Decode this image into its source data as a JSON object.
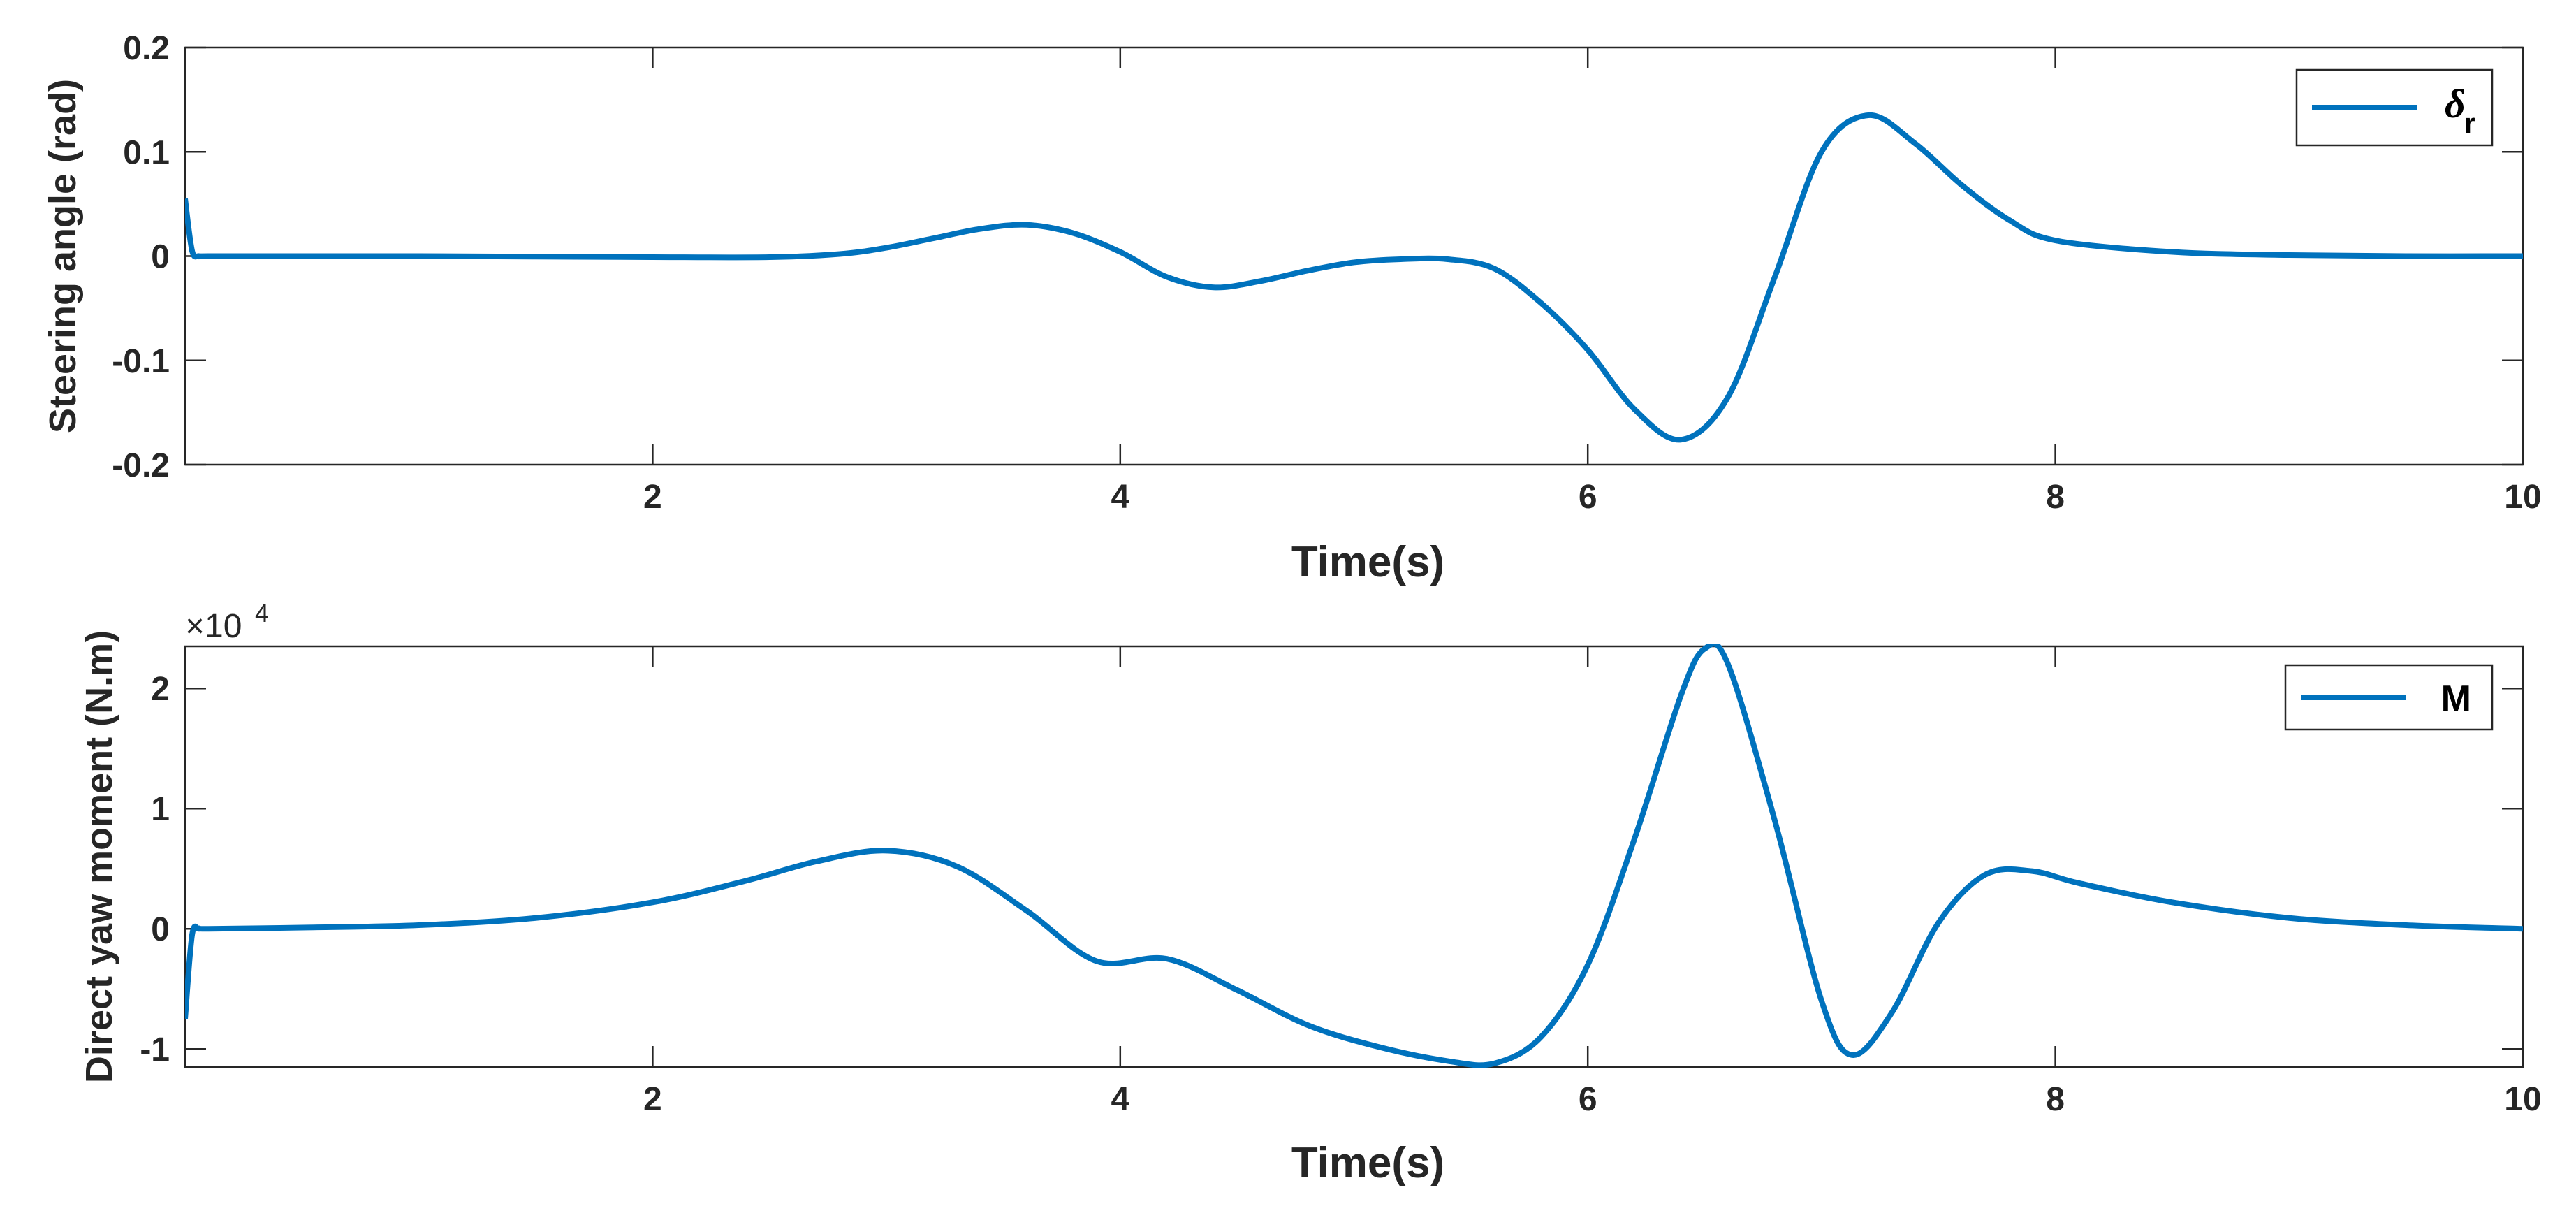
{
  "chart_data": [
    {
      "type": "line",
      "xlabel": "Time(s)",
      "ylabel": "Steering angle (rad)",
      "xlim": [
        0,
        10
      ],
      "ylim": [
        -0.2,
        0.2
      ],
      "xticks": [
        2,
        4,
        6,
        8,
        10
      ],
      "yticks": [
        -0.2,
        -0.1,
        0,
        0.1,
        0.2
      ],
      "xtick_labels": [
        "2",
        "4",
        "6",
        "8",
        "10"
      ],
      "ytick_labels": [
        "-0.2",
        "-0.1",
        "0",
        "0.1",
        "0.2"
      ],
      "grid": false,
      "legend_position": "top-right",
      "color": "#0072BD",
      "series": [
        {
          "name": "δ",
          "name_sub": "r",
          "x": [
            0,
            0.03,
            0.06,
            0.1,
            0.5,
            1,
            1.5,
            2,
            2.5,
            2.8,
            3,
            3.2,
            3.4,
            3.6,
            3.8,
            4.0,
            4.2,
            4.4,
            4.6,
            4.8,
            5.0,
            5.2,
            5.4,
            5.6,
            5.8,
            6.0,
            6.2,
            6.4,
            6.6,
            6.8,
            7.0,
            7.2,
            7.4,
            7.6,
            7.8,
            8.0,
            8.5,
            9,
            9.5,
            10
          ],
          "values": [
            0.055,
            0.005,
            0.0,
            0.0,
            0.0,
            0.0,
            -0.0005,
            -0.001,
            -0.001,
            0.002,
            0.008,
            0.017,
            0.026,
            0.03,
            0.022,
            0.004,
            -0.02,
            -0.03,
            -0.024,
            -0.014,
            -0.006,
            -0.003,
            -0.003,
            -0.012,
            -0.045,
            -0.09,
            -0.147,
            -0.176,
            -0.135,
            -0.02,
            0.1,
            0.135,
            0.108,
            0.068,
            0.035,
            0.015,
            0.004,
            0.001,
            0.0,
            0.0
          ]
        }
      ]
    },
    {
      "type": "line",
      "xlabel": "Time(s)",
      "ylabel": "Direct yaw moment (N.m)",
      "xlim": [
        0,
        10
      ],
      "ylim": [
        -11500,
        23500
      ],
      "xticks": [
        2,
        4,
        6,
        8,
        10
      ],
      "yticks": [
        -10000,
        0,
        10000,
        20000
      ],
      "xtick_labels": [
        "2",
        "4",
        "6",
        "8",
        "10"
      ],
      "ytick_labels": [
        "-1",
        "0",
        "1",
        "2"
      ],
      "exponent_label": "×10",
      "exponent_power": "4",
      "grid": false,
      "legend_position": "top-right",
      "color": "#0072BD",
      "series": [
        {
          "name": "M",
          "x": [
            0,
            0.03,
            0.06,
            0.1,
            0.5,
            1.0,
            1.5,
            2.0,
            2.4,
            2.7,
            3.0,
            3.3,
            3.6,
            3.9,
            4.2,
            4.5,
            4.8,
            5.1,
            5.4,
            5.6,
            5.8,
            6.0,
            6.2,
            6.4,
            6.5,
            6.6,
            6.8,
            7.0,
            7.13,
            7.3,
            7.5,
            7.7,
            7.9,
            8.1,
            8.5,
            9.0,
            9.5,
            10
          ],
          "values": [
            -7500,
            -500,
            0,
            0,
            100,
            300,
            900,
            2200,
            4000,
            5600,
            6500,
            5200,
            1500,
            -2700,
            -2500,
            -5100,
            -8000,
            -9800,
            -11000,
            -11200,
            -9000,
            -3000,
            7500,
            19500,
            23300,
            22000,
            9000,
            -6000,
            -10500,
            -7000,
            500,
            4500,
            4800,
            3800,
            2200,
            900,
            300,
            0
          ]
        }
      ]
    }
  ]
}
